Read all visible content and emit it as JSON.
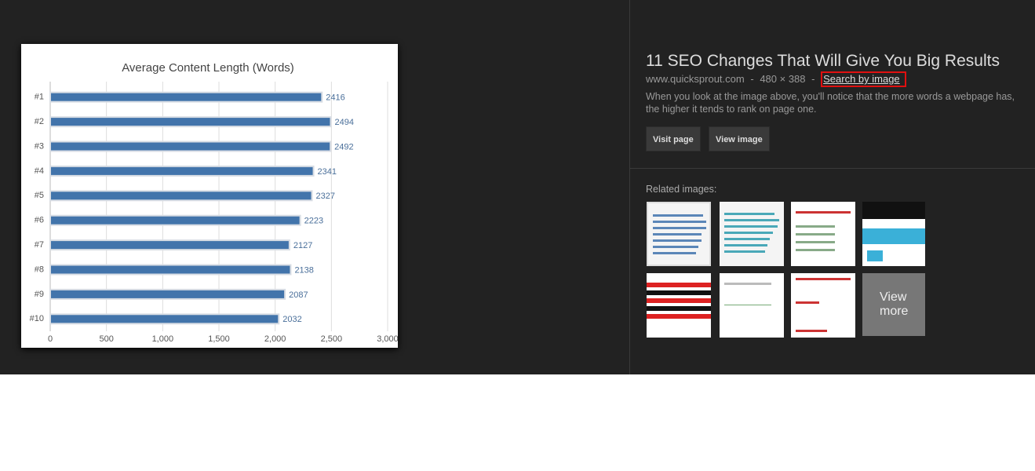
{
  "chart_data": {
    "type": "bar",
    "orientation": "horizontal",
    "title": "Average Content Length (Words)",
    "categories": [
      "#1",
      "#2",
      "#3",
      "#4",
      "#5",
      "#6",
      "#7",
      "#8",
      "#9",
      "#10"
    ],
    "values": [
      2416,
      2494,
      2492,
      2341,
      2327,
      2223,
      2127,
      2138,
      2087,
      2032
    ],
    "color": "#4274ab",
    "xlim": [
      0,
      3000
    ],
    "xticks": [
      0,
      500,
      {
        "value": 1000,
        "label": "1,000"
      },
      {
        "value": 1500,
        "label": "1,500"
      },
      {
        "value": 2000,
        "label": "2,000"
      },
      {
        "value": 2500,
        "label": "2,500"
      },
      {
        "value": 3000,
        "label": "3,000"
      }
    ],
    "grid": true,
    "data_labels": true
  },
  "result": {
    "title": "11 SEO Changes That Will Give You Big Results",
    "source": "www.quicksprout.com",
    "separator": "-",
    "dimensions": "480 × 388",
    "search_by_image": "Search by image",
    "description": "When you look at the image above, you'll notice that the more words a webpage has, the higher it tends to rank on page one.",
    "buttons": [
      "Visit page",
      "View image"
    ]
  },
  "related": {
    "label": "Related images:",
    "view_more": "View more"
  }
}
